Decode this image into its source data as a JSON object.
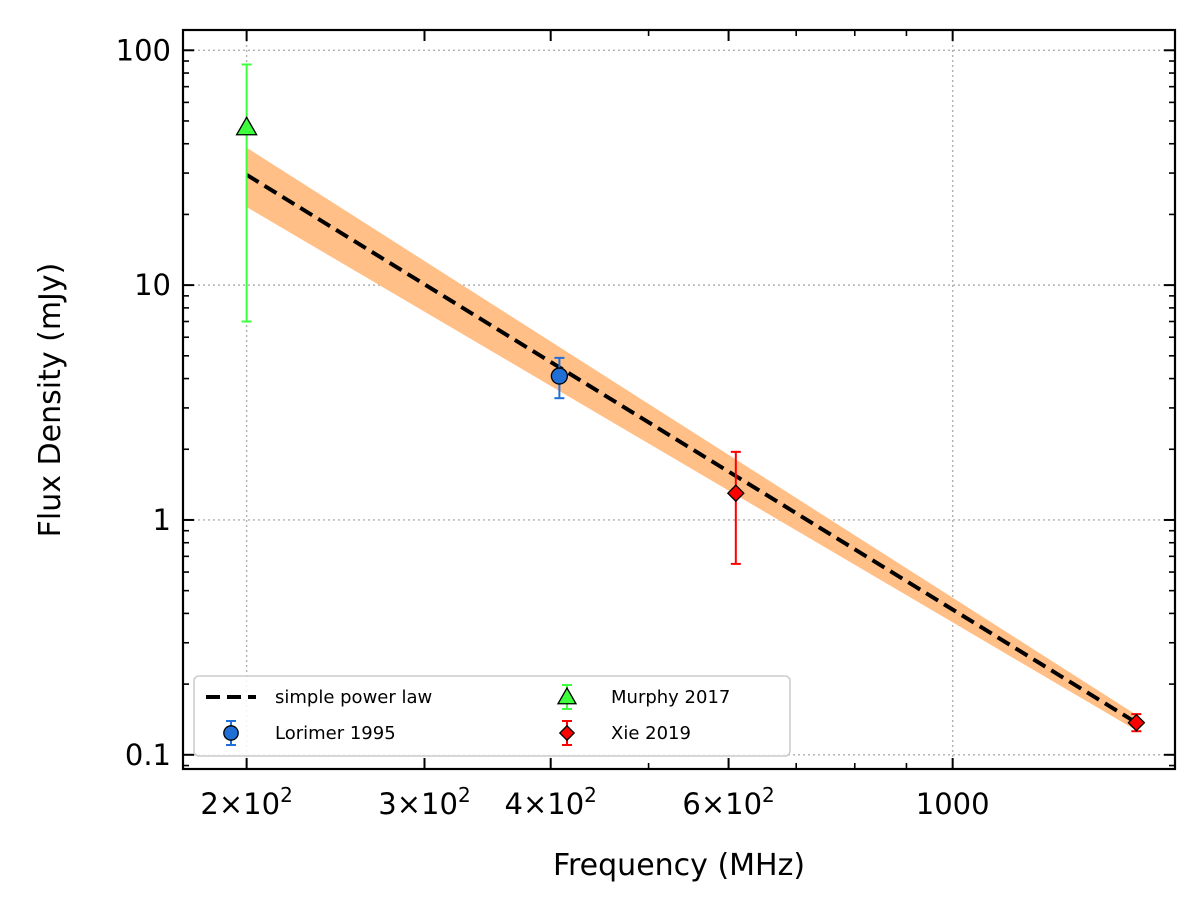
{
  "chart_data": {
    "type": "scatter",
    "xlabel": "Frequency (MHz)",
    "ylabel": "Flux Density (mJy)",
    "xscale": "log",
    "yscale": "log",
    "xlim": [
      173,
      1660
    ],
    "ylim": [
      0.087,
      122
    ],
    "grid": true,
    "legend_position": "lower-left",
    "x_ticks": [
      {
        "value": 200,
        "mantissa": "2",
        "base": "10",
        "exp": "2"
      },
      {
        "value": 300,
        "mantissa": "3",
        "base": "10",
        "exp": "2"
      },
      {
        "value": 400,
        "mantissa": "4",
        "base": "10",
        "exp": "2"
      },
      {
        "value": 600,
        "mantissa": "6",
        "base": "10",
        "exp": "2"
      },
      {
        "value": 1000,
        "label": "1000"
      }
    ],
    "y_ticks": [
      {
        "value": 0.1,
        "label": "0.1"
      },
      {
        "value": 1,
        "label": "1"
      },
      {
        "value": 10,
        "label": "10"
      },
      {
        "value": 100,
        "label": "100"
      }
    ],
    "fit": {
      "name": "simple power law",
      "color": "#000000",
      "style": "dashed",
      "band_color": "#ffbf86",
      "x_range": [
        200,
        1520
      ],
      "y_start": 29.5,
      "y_end": 0.137,
      "band_start": [
        21.5,
        38.5
      ],
      "band_end": [
        0.127,
        0.148
      ]
    },
    "series": [
      {
        "name": "Lorimer 1995",
        "marker": "circle",
        "color": "#1f6fd6",
        "ecolor": "#1f6fd6",
        "points": [
          {
            "x": 408,
            "y": 4.1,
            "ylow": 3.3,
            "yhigh": 4.9
          }
        ]
      },
      {
        "name": "Murphy 2017",
        "marker": "triangle",
        "color": "#3dff3d",
        "ecolor": "#3dff3d",
        "points": [
          {
            "x": 200,
            "y": 47,
            "ylow": 7,
            "yhigh": 87
          }
        ]
      },
      {
        "name": "Xie 2019",
        "marker": "diamond",
        "color": "#ff0000",
        "ecolor": "#ff0000",
        "points": [
          {
            "x": 610,
            "y": 1.3,
            "ylow": 0.65,
            "yhigh": 1.95
          },
          {
            "x": 1520,
            "y": 0.137,
            "ylow": 0.126,
            "yhigh": 0.149
          }
        ]
      }
    ],
    "legend": {
      "columns": [
        [
          "simple power law",
          "Lorimer 1995"
        ],
        [
          "Murphy 2017",
          "Xie 2019"
        ]
      ]
    }
  }
}
